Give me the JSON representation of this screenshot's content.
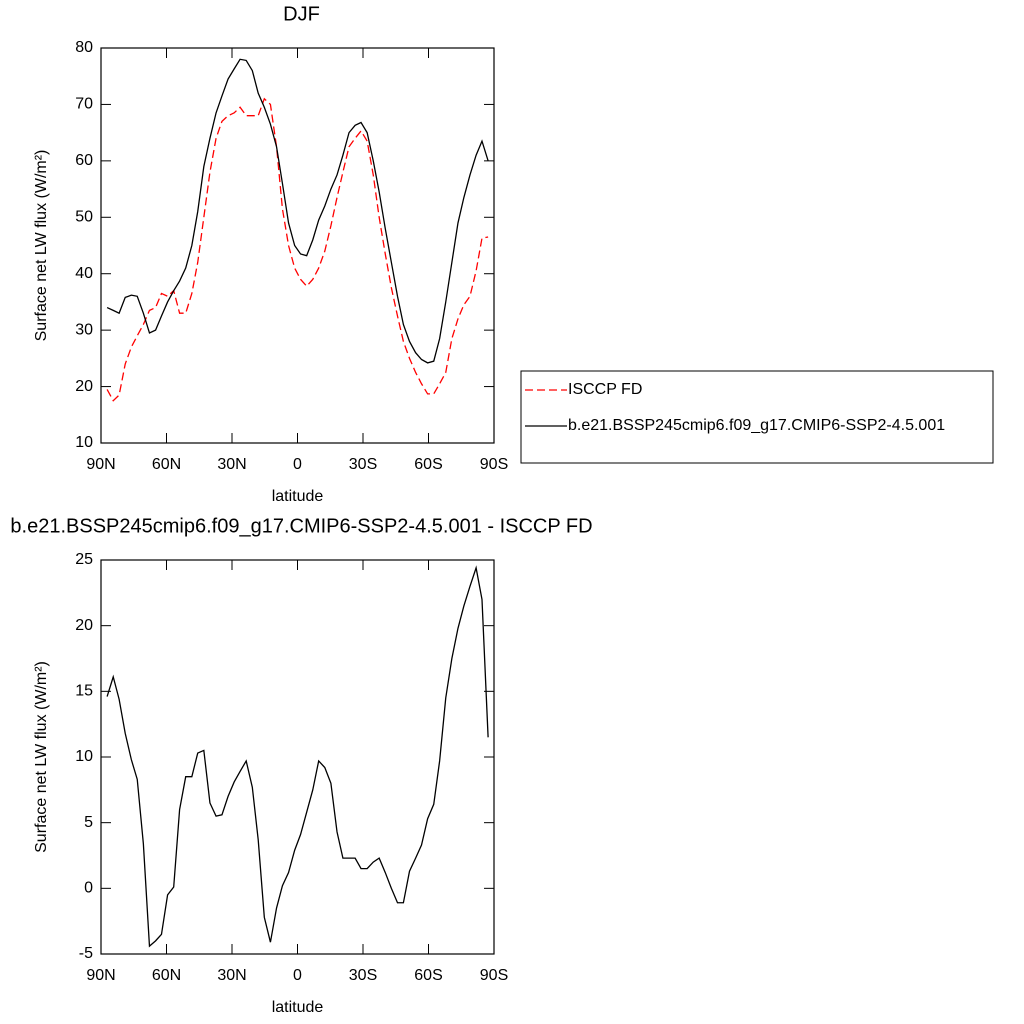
{
  "chart_data": [
    {
      "type": "line",
      "title": "DJF",
      "xlabel": "latitude",
      "ylabel": "Surface net LW flux (W/m²)",
      "x": [
        87.2,
        84.4,
        81.7,
        78.9,
        76.1,
        73.4,
        70.6,
        67.8,
        65.0,
        62.3,
        59.5,
        56.7,
        54.0,
        51.2,
        48.4,
        45.7,
        42.9,
        40.1,
        37.3,
        34.6,
        31.8,
        29.0,
        26.3,
        23.5,
        20.7,
        18.0,
        15.2,
        12.4,
        9.6,
        6.9,
        4.1,
        1.3,
        -1.4,
        -4.2,
        -7.0,
        -9.7,
        -12.5,
        -15.3,
        -18.1,
        -20.8,
        -23.6,
        -26.4,
        -29.1,
        -31.9,
        -34.7,
        -37.4,
        -40.2,
        -43.0,
        -45.8,
        -48.5,
        -51.3,
        -54.1,
        -56.8,
        -59.6,
        -62.4,
        -65.1,
        -67.9,
        -70.7,
        -73.5,
        -76.2,
        -79.0,
        -81.8,
        -84.5,
        -87.3
      ],
      "xlim": [
        90,
        -90
      ],
      "xticks": [
        {
          "value": 90,
          "label": "90N"
        },
        {
          "value": 60,
          "label": "60N"
        },
        {
          "value": 30,
          "label": "30N"
        },
        0,
        {
          "value": -30,
          "label": "30S"
        },
        {
          "value": -60,
          "label": "60S"
        },
        {
          "value": -90,
          "label": "90S"
        }
      ],
      "ylim": [
        10,
        80
      ],
      "yticks": [
        10,
        20,
        30,
        40,
        50,
        60,
        70,
        80
      ],
      "legend": "outside-right",
      "series": [
        {
          "name": "ISCCP FD",
          "color": "#ff0000",
          "line_style": "dashed",
          "values": [
            19.5,
            17.5,
            18.5,
            24,
            27,
            29,
            31,
            33.5,
            34,
            36.5,
            36,
            37,
            33,
            33,
            36.5,
            42,
            50,
            58,
            64,
            67,
            68,
            68.5,
            69.5,
            68,
            68,
            68,
            71,
            70,
            62.5,
            51.5,
            45,
            41,
            39,
            37.8,
            39,
            41,
            44,
            48.5,
            53.5,
            58,
            62.5,
            64,
            65.3,
            63.5,
            57.5,
            50,
            43.5,
            37.5,
            32.5,
            28,
            25,
            22.5,
            20.5,
            18.7,
            18.7,
            20.5,
            22.5,
            28.5,
            32,
            34.5,
            36,
            40.5,
            46.3,
            46.5
          ]
        },
        {
          "name": "b.e21.BSSP245cmip6.f09_g17.CMIP6-SSP2-4.5.001",
          "color": "#000000",
          "line_style": "solid",
          "values": [
            34,
            33.5,
            33,
            35.8,
            36.2,
            36,
            33,
            29.5,
            30,
            32.5,
            35,
            37,
            38.7,
            41,
            45,
            51,
            59,
            64,
            68.5,
            71.5,
            74.5,
            76.3,
            78,
            77.8,
            76,
            72,
            69.5,
            66.5,
            62.5,
            56,
            49,
            45,
            43.5,
            43.2,
            46,
            49.5,
            52,
            55,
            57.5,
            61,
            65,
            66.3,
            66.8,
            65,
            60,
            54.5,
            48,
            42,
            36,
            31,
            28,
            26,
            24.8,
            24.2,
            24.5,
            28.5,
            35,
            42,
            49,
            53.5,
            57.5,
            61,
            63.5,
            60
          ]
        }
      ]
    },
    {
      "type": "line",
      "title": "b.e21.BSSP245cmip6.f09_g17.CMIP6-SSP2-4.5.001 - ISCCP FD",
      "xlabel": "latitude",
      "ylabel": "Surface net LW flux (W/m²)",
      "x": [
        87.2,
        84.4,
        81.7,
        78.9,
        76.1,
        73.4,
        70.6,
        67.8,
        65.0,
        62.3,
        59.5,
        56.7,
        54.0,
        51.2,
        48.4,
        45.7,
        42.9,
        40.1,
        37.3,
        34.6,
        31.8,
        29.0,
        26.3,
        23.5,
        20.7,
        18.0,
        15.2,
        12.4,
        9.6,
        6.9,
        4.1,
        1.3,
        -1.4,
        -4.2,
        -7.0,
        -9.7,
        -12.5,
        -15.3,
        -18.1,
        -20.8,
        -23.6,
        -26.4,
        -29.1,
        -31.9,
        -34.7,
        -37.4,
        -40.2,
        -43.0,
        -45.8,
        -48.5,
        -51.3,
        -54.1,
        -56.8,
        -59.6,
        -62.4,
        -65.1,
        -67.9,
        -70.7,
        -73.5,
        -76.2,
        -79.0,
        -81.8,
        -84.5,
        -87.3
      ],
      "xlim": [
        90,
        -90
      ],
      "xticks": [
        {
          "value": 90,
          "label": "90N"
        },
        {
          "value": 60,
          "label": "60N"
        },
        {
          "value": 30,
          "label": "30N"
        },
        0,
        {
          "value": -30,
          "label": "30S"
        },
        {
          "value": -60,
          "label": "60S"
        },
        {
          "value": -90,
          "label": "90S"
        }
      ],
      "ylim": [
        -5,
        25
      ],
      "yticks": [
        -5,
        0,
        5,
        10,
        15,
        20,
        25
      ],
      "series": [
        {
          "color": "#000000",
          "line_style": "solid",
          "values": [
            14.6,
            16.1,
            14.4,
            11.8,
            9.8,
            8.3,
            3.4,
            -4.4,
            -4,
            -3.5,
            -0.5,
            0.1,
            6,
            8.5,
            8.5,
            10.3,
            10.5,
            6.5,
            5.5,
            5.6,
            7,
            8.1,
            8.9,
            9.7,
            7.7,
            3.7,
            -2.2,
            -4.1,
            -1.5,
            0.2,
            1.2,
            2.9,
            4.1,
            5.8,
            7.5,
            9.7,
            9.2,
            8,
            4.3,
            2.3,
            2.3,
            2.3,
            1.5,
            1.5,
            2,
            2.3,
            1.2,
            0,
            -1.1,
            -1.1,
            1.3,
            2.3,
            3.3,
            5.3,
            6.4,
            9.7,
            14.5,
            17.5,
            19.8,
            21.5,
            23,
            24.4,
            22,
            11.5
          ]
        }
      ]
    }
  ]
}
